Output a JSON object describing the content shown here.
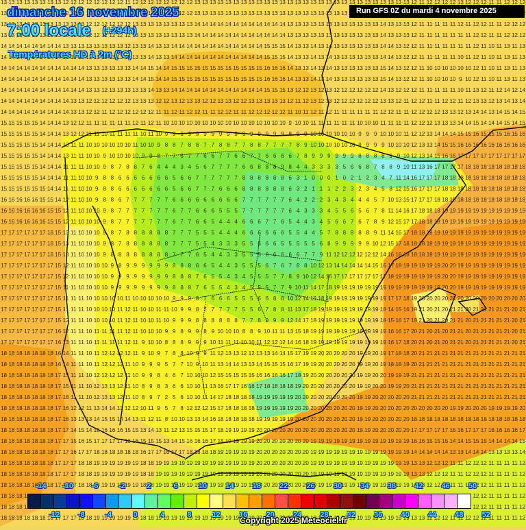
{
  "header": {
    "date": "dimanche 16 novembre 2025",
    "time": "7:00 locale",
    "offset": "(+294h)",
    "parameter": "Températures HD à 2m (°C)",
    "run": "Run GFS 0Z du mardi 4 novembre 2025"
  },
  "footer": {
    "copyright": "Copyright 2025 Meteociel.fr"
  },
  "legend": {
    "colors": [
      "#0a1a4a",
      "#04306a",
      "#0a3a9a",
      "#0a14c8",
      "#1010ff",
      "#1048ff",
      "#0a9af0",
      "#30c8f8",
      "#60ffff",
      "#60f0a0",
      "#60ff60",
      "#60f000",
      "#c0f000",
      "#ffff00",
      "#ffff80",
      "#ffe050",
      "#ffc000",
      "#ffa000",
      "#ff7000",
      "#ff5040",
      "#ff3000",
      "#f00000",
      "#e00000",
      "#b00000",
      "#901010",
      "#700000",
      "#700050",
      "#a00080",
      "#c800c8",
      "#ff00ff",
      "#ff60ff",
      "#ff90ff",
      "#ffb0ff",
      "#ffffff"
    ],
    "top_labels": [
      "-14",
      "-10",
      "-6",
      "-2",
      "2",
      "6",
      "10",
      "14",
      "18",
      "22",
      "26",
      "30",
      "34",
      "38",
      "42",
      "46",
      "50"
    ],
    "bottom_labels": [
      "-12",
      "-8",
      "-4",
      "0",
      "4",
      "8",
      "12",
      "16",
      "20",
      "24",
      "28",
      "32",
      "36",
      "40",
      "44",
      "48",
      "52"
    ]
  },
  "map": {
    "cols": 68,
    "rows": 48,
    "region": "Péninsule Ibérique",
    "sample_rows": [
      {
        "y": 0,
        "values": "13 13 13 13 13 13 13 13 12 12 12 12 12 12 12 12 11 12 12 12 12 12 12 12 12 13 13 13 13 13 13 13 13 13 13 13 13 13 13 13 13 13 13 13 13 13 13 13 13 13 13 13 13 12 11 12 12 12 12 13 12 12 12 11 11 12 12 12"
      },
      {
        "y": 7,
        "values": "14 14 14 14 14 14 14 14 14 14 14 13 13 13 13 13 13 14 14 15 14 14 15 15 15 15 15 15 15 15 15 15 15 15 16 16 16 14 13 13 14 13 14 13 13 13 13 13 13 15 14 13 12 12 11 10 10 10 10 9 10 12 11 10 11 13 11 13"
      },
      {
        "y": 14,
        "values": "15 15 15 15 15 14 14 14 13 11 11 10 10 9 10 10 10 10 9 9 8 7 7 6 7 7 6 6 7 7 6 6 7 7 6 6 6 6 7 8 9 9 9 9 9 9 8 8 8 8 9 9 10 12 13 14 15 16 16 17 17 17 17 17 17 17 17 17"
      },
      {
        "y": 15,
        "values": "15 15 15 15 15 14 14 14 11 11 11 10 10 9 8 7 8 8 7 6 4 4 4 3 4 5 6 7 7 7 7 6 6 8 8 8 9 8 4 4 3 3 3 3 5 6 6 8 7 8 8 9 10 11 13 16 17 17 17 17 18 18 18 18 18 18 18 18"
      },
      {
        "y": 16,
        "values": "15 15 15 15 15 14 14 14 11 11 10 10 9 8 8 6 6 6 6 6 6 6 5 6 6 7 7 7 7 7 7 8 8 8 8 8 8 6 3 1 0 0 0 1 0 2 1 2 3 4 7 11 14 16 17 17 17 18 18 18 18 18 18 18 18 18 18 18"
      },
      {
        "y": 22,
        "values": "17 17 17 17 17 17 16 15 13 11 10 10 10 9 8 7 8 8 8 8 8 8 7 7 7 5 5 4 3 3 3 5 5 5 6 6 5 5 5 5 5 6 8 9 9 9 9 9 10 12 15 17 18 18 18 18 19 19 19 19 19 19 19 19 19 19 19 19"
      },
      {
        "y": 26,
        "values": "17 17 17 17 17 17 17 15 11 11 10 10 10 10 9 9 9 9 9 9 9 9 8 8 8 7 6 5 5 4 3 4 5 5 5 7 7 9 10 11 14 17 18 19 19 19 19 19 19 19 19 19 19 19 19 19 19 20 20 19 19 19 19 19 19 19 19 19"
      },
      {
        "y": 28,
        "values": "17 17 17 17 17 17 17 15 11 11 11 10 10 10 10 11 12 11 10 10 11 11 10 9 9 8 7 7 7 7 7 5 5 6 7 8 8 11 13 17 18 19 19 19 19 19 19 19 19 18 14 15 16 19 21 20 21 20 21 21 20 21 21 21 21 21 20 21"
      },
      {
        "y": 36,
        "values": "18 18 18 18 18 18 18 17 16 11 11 10 12 13 13 12 11 10 8 9 7 2 5 6 10 10 11 14 17 18 18 18 18 19 19 19 19 19 20 20 20 20 20 20 20 20 19 19 20 20 20 20 20 21 21 21 21 21 21 21 21 21 21 21 21 21 21 21"
      },
      {
        "y": 42,
        "values": "18 18 18 18 18 18 18 17 17 17 18 18 19 19 19 19 19 19 18 18 19 19 19 19 19 19 19 19 19 19 19 19 19 20 20 20 20 20 20 20 19 19 19 19 19 19 19 19 19 19 19 19 19 13 13 12 12 12 11 11 12 12 12 11 11 11 11 12"
      }
    ]
  }
}
